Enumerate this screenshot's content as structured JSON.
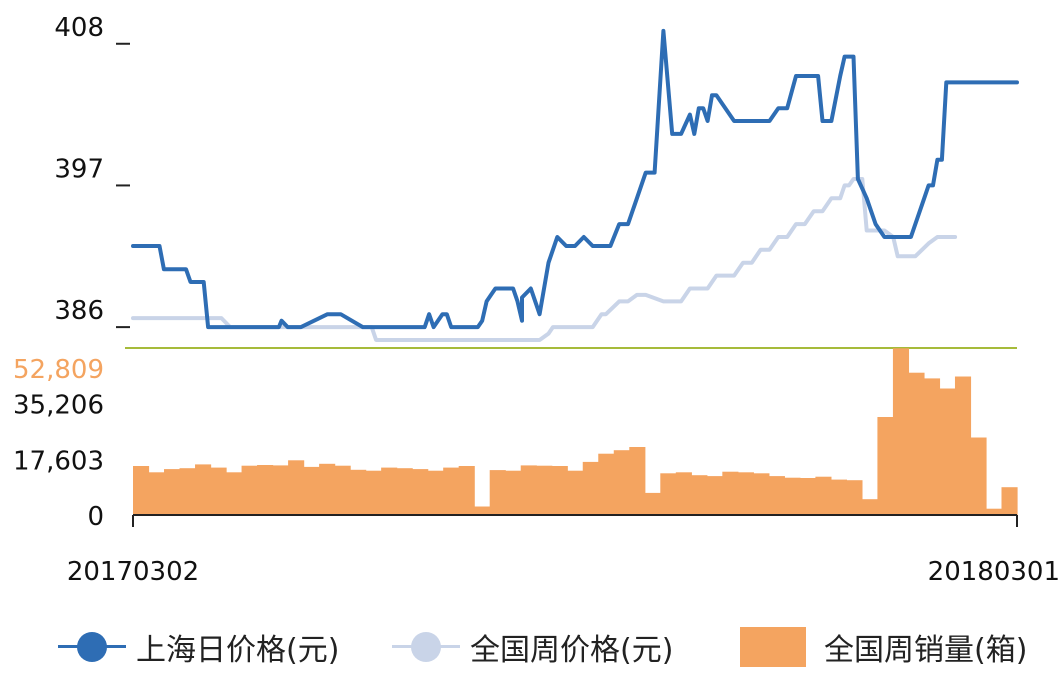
{
  "chart_data": [
    {
      "type": "line",
      "title": "",
      "xlabel": "",
      "ylabel": "",
      "y_ticks": [
        "386",
        "397",
        "408"
      ],
      "ylim": [
        385,
        410
      ],
      "x_range": [
        "20170302",
        "20180301"
      ],
      "series": [
        {
          "name": "上海日价格(元)",
          "color": "#2E6DB4",
          "x": [
            0,
            0.03,
            0.035,
            0.06,
            0.065,
            0.08,
            0.085,
            0.165,
            0.168,
            0.175,
            0.19,
            0.22,
            0.235,
            0.26,
            0.31,
            0.33,
            0.335,
            0.34,
            0.35,
            0.355,
            0.36,
            0.39,
            0.395,
            0.4,
            0.405,
            0.41,
            0.43,
            0.435,
            0.44,
            0.44,
            0.45,
            0.46,
            0.47,
            0.48,
            0.49,
            0.5,
            0.51,
            0.52,
            0.54,
            0.55,
            0.56,
            0.57,
            0.58,
            0.59,
            0.6,
            0.61,
            0.62,
            0.63,
            0.635,
            0.64,
            0.645,
            0.65,
            0.655,
            0.66,
            0.68,
            0.7,
            0.72,
            0.73,
            0.74,
            0.75,
            0.76,
            0.775,
            0.78,
            0.79,
            0.8,
            0.805,
            0.81,
            0.815,
            0.82,
            0.83,
            0.84,
            0.85,
            0.86,
            0.87,
            0.88,
            0.895,
            0.9,
            0.905,
            0.91,
            0.915,
            0.92,
            0.925,
            0.93,
            0.94,
            0.95,
            0.96,
            0.97,
            1.0
          ],
          "values": [
            392.3,
            392.3,
            390.5,
            390.5,
            389.5,
            389.5,
            386,
            386,
            386.5,
            386,
            386,
            387,
            387,
            386,
            386,
            386,
            387,
            386,
            387,
            387,
            386,
            386,
            386.5,
            388,
            388.5,
            389,
            389,
            388,
            386.5,
            388.3,
            389,
            387,
            391,
            393,
            392.3,
            392.3,
            393,
            392.3,
            392.3,
            394,
            394,
            396,
            398,
            398,
            409,
            401,
            401,
            402.5,
            401,
            403,
            403,
            402,
            404,
            404,
            402,
            402,
            402,
            403,
            403,
            405.5,
            405.5,
            405.5,
            402,
            402,
            405.5,
            407,
            407,
            407,
            397.5,
            396,
            394,
            393,
            393,
            393,
            393,
            396,
            397,
            397,
            399,
            399,
            405,
            405,
            405,
            405,
            405,
            405,
            405,
            405
          ]
        },
        {
          "name": "全国周价格(元)",
          "color": "#C9D4E8",
          "x": [
            0,
            0.1,
            0.11,
            0.135,
            0.14,
            0.27,
            0.275,
            0.28,
            0.46,
            0.47,
            0.475,
            0.52,
            0.53,
            0.535,
            0.55,
            0.56,
            0.57,
            0.58,
            0.6,
            0.62,
            0.63,
            0.65,
            0.66,
            0.68,
            0.69,
            0.7,
            0.71,
            0.72,
            0.73,
            0.74,
            0.75,
            0.76,
            0.77,
            0.78,
            0.79,
            0.8,
            0.805,
            0.81,
            0.815,
            0.825,
            0.83,
            0.84,
            0.85,
            0.86,
            0.865,
            0.87,
            0.88,
            0.885,
            0.9,
            0.91,
            0.92,
            0.93
          ],
          "values": [
            386.7,
            386.7,
            386,
            386,
            386,
            386,
            385,
            385,
            385,
            385.5,
            386,
            386,
            387,
            387,
            388,
            388,
            388.5,
            388.5,
            388,
            388,
            389,
            389,
            390,
            390,
            391,
            391,
            392,
            392,
            393,
            393,
            394,
            394,
            395,
            395,
            396,
            396,
            397,
            397,
            397.5,
            397.5,
            393.5,
            393.5,
            393.5,
            393,
            391.5,
            391.5,
            391.5,
            391.5,
            392.5,
            393,
            393,
            393
          ]
        }
      ]
    },
    {
      "type": "bar",
      "title": "",
      "xlabel": "",
      "ylabel": "",
      "y_ticks": [
        "0",
        "17,603",
        "35,206",
        "52,809"
      ],
      "ylim": [
        0,
        52809
      ],
      "series": [
        {
          "name": "全国周销量(箱)",
          "color": "#F4A460",
          "values": [
            15500,
            13500,
            14500,
            14800,
            16000,
            15000,
            13500,
            15600,
            15800,
            15700,
            17300,
            15200,
            16200,
            15600,
            14300,
            14000,
            15000,
            14800,
            14500,
            14000,
            15000,
            15500,
            2700,
            14200,
            14000,
            15700,
            15600,
            15500,
            14000,
            16800,
            19400,
            20500,
            21500,
            7000,
            13200,
            13500,
            12600,
            12300,
            13700,
            13500,
            13200,
            12300,
            11800,
            11700,
            12100,
            11200,
            11000,
            5000,
            31000,
            52700,
            45000,
            43200,
            40000,
            43800,
            24500,
            2000,
            8800
          ]
        }
      ]
    }
  ],
  "x_labels": [
    "20170302",
    "20180301"
  ],
  "divider_color": "#A6BB3A",
  "top_tick_color": "#F4A460",
  "legend": [
    {
      "label": "上海日价格(元)",
      "icon": "line-dot-icon",
      "color": "#2E6DB4"
    },
    {
      "label": "全国周价格(元)",
      "icon": "line-dot-icon",
      "color": "#C9D4E8"
    },
    {
      "label": "全国周销量(箱)",
      "icon": "bar-swatch-icon",
      "color": "#F4A460"
    }
  ]
}
